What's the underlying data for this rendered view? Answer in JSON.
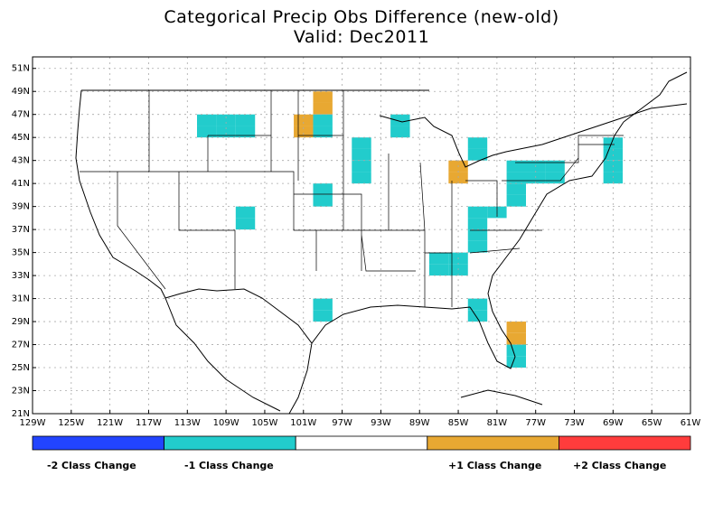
{
  "title": "Categorical Precip Obs Difference (new-old)",
  "subtitle": "Valid: Dec2011",
  "lat_labels": [
    "21N",
    "23N",
    "25N",
    "27N",
    "29N",
    "31N",
    "33N",
    "35N",
    "37N",
    "39N",
    "41N",
    "43N",
    "45N",
    "47N",
    "49N",
    "51N"
  ],
  "lon_labels": [
    "129W",
    "125W",
    "121W",
    "117W",
    "113W",
    "109W",
    "105W",
    "101W",
    "97W",
    "93W",
    "89W",
    "85W",
    "81W",
    "77W",
    "73W",
    "69W",
    "65W",
    "61W"
  ],
  "legend": [
    {
      "label": "-2 Class Change",
      "color": "#2244ff"
    },
    {
      "label": "-1 Class Change",
      "color": "#22cccc"
    },
    {
      "label": "",
      "color": "#ffffff"
    },
    {
      "label": "+1 Class Change",
      "color": "#e8a832"
    },
    {
      "label": "+2 Class Change",
      "color": "#ff3c3c"
    }
  ],
  "colors": {
    "minus1": "#22cccc",
    "plus1": "#e8a832",
    "grid": "#aaaaaa",
    "border": "#000000"
  },
  "cells": [
    {
      "lon": -110,
      "lat": 46,
      "class": -1
    },
    {
      "lon": -112,
      "lat": 46,
      "class": -1
    },
    {
      "lon": -108,
      "lat": 46,
      "class": -1
    },
    {
      "lon": -110,
      "lat": 45,
      "class": -1
    },
    {
      "lon": -112,
      "lat": 45,
      "class": -1
    },
    {
      "lon": -108,
      "lat": 45,
      "class": -1
    },
    {
      "lon": -100,
      "lat": 48,
      "class": 1
    },
    {
      "lon": -100,
      "lat": 47,
      "class": 1
    },
    {
      "lon": -102,
      "lat": 46,
      "class": 1
    },
    {
      "lon": -102,
      "lat": 45,
      "class": 1
    },
    {
      "lon": -100,
      "lat": 46,
      "class": -1
    },
    {
      "lon": -100,
      "lat": 45,
      "class": -1
    },
    {
      "lon": -92,
      "lat": 46,
      "class": -1
    },
    {
      "lon": -92,
      "lat": 45,
      "class": -1
    },
    {
      "lon": -96,
      "lat": 44,
      "class": -1
    },
    {
      "lon": -96,
      "lat": 43,
      "class": -1
    },
    {
      "lon": -96,
      "lat": 42,
      "class": -1
    },
    {
      "lon": -96,
      "lat": 41,
      "class": -1
    },
    {
      "lon": -100,
      "lat": 40,
      "class": -1
    },
    {
      "lon": -100,
      "lat": 39,
      "class": -1
    },
    {
      "lon": -108,
      "lat": 38,
      "class": -1
    },
    {
      "lon": -108,
      "lat": 37,
      "class": -1
    },
    {
      "lon": -84,
      "lat": 44,
      "class": -1
    },
    {
      "lon": -84,
      "lat": 43,
      "class": -1
    },
    {
      "lon": -86,
      "lat": 42,
      "class": 1
    },
    {
      "lon": -86,
      "lat": 41,
      "class": 1
    },
    {
      "lon": -80,
      "lat": 42,
      "class": -1
    },
    {
      "lon": -78,
      "lat": 42,
      "class": -1
    },
    {
      "lon": -76,
      "lat": 42,
      "class": -1
    },
    {
      "lon": -78,
      "lat": 41,
      "class": -1
    },
    {
      "lon": -76,
      "lat": 41,
      "class": -1
    },
    {
      "lon": -80,
      "lat": 41,
      "class": -1
    },
    {
      "lon": -70,
      "lat": 44,
      "class": -1
    },
    {
      "lon": -70,
      "lat": 43,
      "class": -1
    },
    {
      "lon": -70,
      "lat": 42,
      "class": -1
    },
    {
      "lon": -70,
      "lat": 41,
      "class": -1
    },
    {
      "lon": -80,
      "lat": 40,
      "class": -1
    },
    {
      "lon": -80,
      "lat": 39,
      "class": -1
    },
    {
      "lon": -84,
      "lat": 38,
      "class": -1
    },
    {
      "lon": -82,
      "lat": 38,
      "class": -1
    },
    {
      "lon": -84,
      "lat": 37,
      "class": -1
    },
    {
      "lon": -84,
      "lat": 36,
      "class": -1
    },
    {
      "lon": -84,
      "lat": 35,
      "class": -1
    },
    {
      "lon": -88,
      "lat": 34,
      "class": -1
    },
    {
      "lon": -86,
      "lat": 34,
      "class": -1
    },
    {
      "lon": -88,
      "lat": 33,
      "class": -1
    },
    {
      "lon": -86,
      "lat": 33,
      "class": -1
    },
    {
      "lon": -84,
      "lat": 30,
      "class": -1
    },
    {
      "lon": -84,
      "lat": 29,
      "class": -1
    },
    {
      "lon": -100,
      "lat": 30,
      "class": -1
    },
    {
      "lon": -100,
      "lat": 29,
      "class": -1
    },
    {
      "lon": -80,
      "lat": 28,
      "class": 1
    },
    {
      "lon": -80,
      "lat": 27,
      "class": 1
    },
    {
      "lon": -80,
      "lat": 26,
      "class": -1
    },
    {
      "lon": -80,
      "lat": 25,
      "class": -1
    }
  ]
}
